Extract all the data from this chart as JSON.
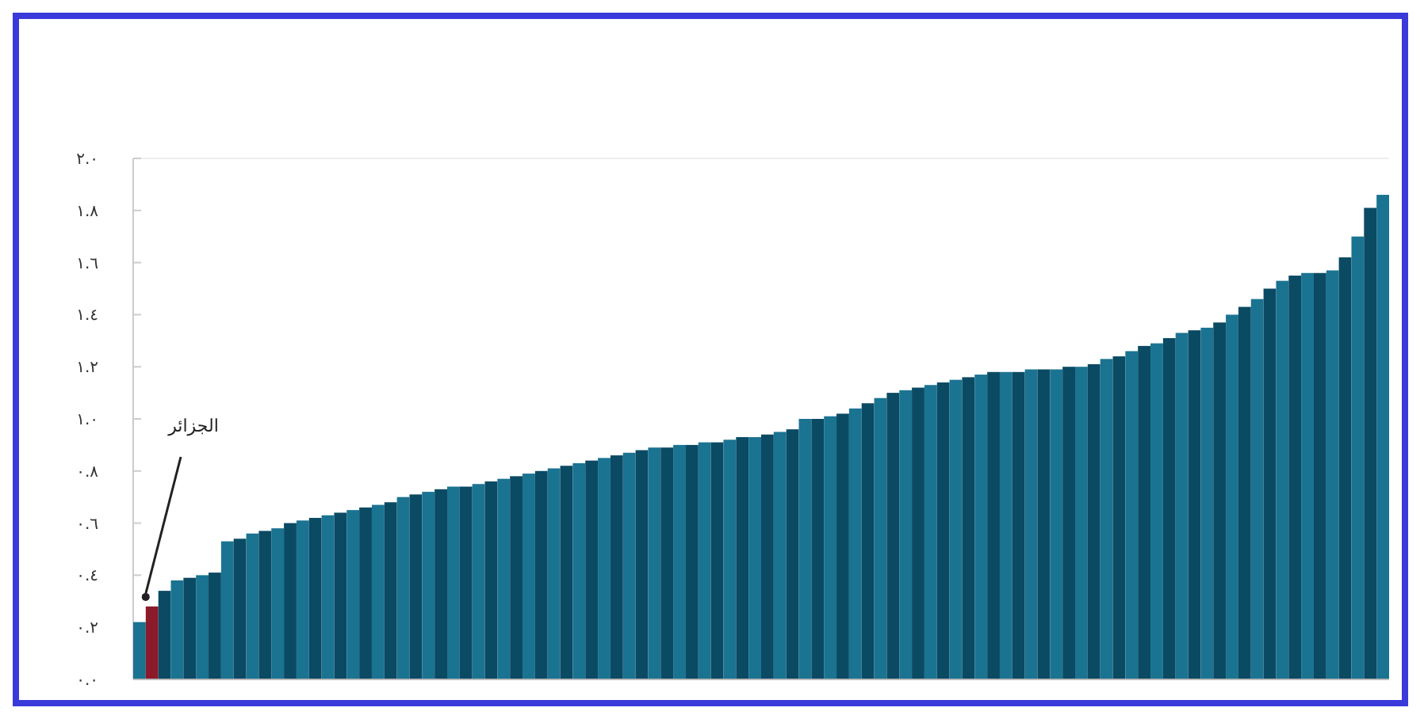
{
  "chart_data": {
    "type": "bar",
    "categories": [
      null,
      null,
      null,
      null,
      null,
      null,
      null,
      null,
      null,
      null,
      null,
      null,
      null,
      null,
      null,
      null,
      null,
      null,
      null,
      null,
      null,
      null,
      null,
      null,
      null,
      null,
      null,
      null,
      null,
      null,
      null,
      null,
      null,
      null,
      null,
      null,
      null,
      null,
      null,
      null,
      null,
      null,
      null,
      null,
      null,
      null,
      null,
      null,
      null,
      null,
      null,
      null,
      null,
      null,
      null,
      null,
      null,
      null,
      null,
      null,
      null,
      null,
      null,
      null,
      null,
      null,
      null,
      null,
      null,
      null,
      null,
      null,
      null,
      null,
      null,
      null,
      null,
      null,
      null,
      null,
      null,
      null,
      null,
      null,
      null,
      null,
      null,
      null,
      null,
      null,
      null,
      null,
      null,
      null,
      null,
      null,
      null,
      null,
      null,
      null
    ],
    "values": [
      0.22,
      0.28,
      0.34,
      0.38,
      0.39,
      0.4,
      0.41,
      0.53,
      0.54,
      0.56,
      0.57,
      0.58,
      0.6,
      0.61,
      0.62,
      0.63,
      0.64,
      0.65,
      0.66,
      0.67,
      0.68,
      0.7,
      0.71,
      0.72,
      0.73,
      0.74,
      0.74,
      0.75,
      0.76,
      0.77,
      0.78,
      0.79,
      0.8,
      0.81,
      0.82,
      0.83,
      0.84,
      0.85,
      0.86,
      0.87,
      0.88,
      0.89,
      0.89,
      0.9,
      0.9,
      0.91,
      0.91,
      0.92,
      0.93,
      0.93,
      0.94,
      0.95,
      0.96,
      1.0,
      1.0,
      1.01,
      1.02,
      1.04,
      1.06,
      1.08,
      1.1,
      1.11,
      1.12,
      1.13,
      1.14,
      1.15,
      1.16,
      1.17,
      1.18,
      1.18,
      1.18,
      1.19,
      1.19,
      1.19,
      1.2,
      1.2,
      1.21,
      1.23,
      1.24,
      1.26,
      1.28,
      1.29,
      1.31,
      1.33,
      1.34,
      1.35,
      1.37,
      1.4,
      1.43,
      1.46,
      1.5,
      1.53,
      1.55,
      1.56,
      1.56,
      1.57,
      1.62,
      1.7,
      1.81,
      1.86
    ],
    "colors": [
      "#1a7391",
      "#8b1a2a",
      "#0b4a63",
      "#1a7391",
      "#0b4a63",
      "#1a7391",
      "#0b4a63",
      "#1a7391",
      "#0b4a63",
      "#1a7391",
      "#0b4a63",
      "#1a7391",
      "#0b4a63",
      "#1a7391",
      "#0b4a63",
      "#1a7391",
      "#0b4a63",
      "#1a7391",
      "#0b4a63",
      "#1a7391",
      "#0b4a63",
      "#1a7391",
      "#0b4a63",
      "#1a7391",
      "#0b4a63",
      "#1a7391",
      "#0b4a63",
      "#1a7391",
      "#0b4a63",
      "#1a7391",
      "#0b4a63",
      "#1a7391",
      "#0b4a63",
      "#1a7391",
      "#0b4a63",
      "#1a7391",
      "#0b4a63",
      "#1a7391",
      "#0b4a63",
      "#1a7391",
      "#0b4a63",
      "#1a7391",
      "#0b4a63",
      "#1a7391",
      "#0b4a63",
      "#1a7391",
      "#0b4a63",
      "#1a7391",
      "#0b4a63",
      "#1a7391",
      "#0b4a63",
      "#1a7391",
      "#0b4a63",
      "#1a7391",
      "#0b4a63",
      "#1a7391",
      "#0b4a63",
      "#1a7391",
      "#0b4a63",
      "#1a7391",
      "#0b4a63",
      "#1a7391",
      "#0b4a63",
      "#1a7391",
      "#0b4a63",
      "#1a7391",
      "#0b4a63",
      "#1a7391",
      "#0b4a63",
      "#1a7391",
      "#0b4a63",
      "#1a7391",
      "#0b4a63",
      "#1a7391",
      "#0b4a63",
      "#1a7391",
      "#0b4a63",
      "#1a7391",
      "#0b4a63",
      "#1a7391",
      "#0b4a63",
      "#1a7391",
      "#0b4a63",
      "#1a7391",
      "#0b4a63",
      "#1a7391",
      "#0b4a63",
      "#1a7391",
      "#0b4a63",
      "#1a7391",
      "#0b4a63",
      "#1a7391",
      "#0b4a63",
      "#1a7391",
      "#0b4a63",
      "#1a7391",
      "#0b4a63",
      "#1a7391",
      "#0b4a63",
      "#1a7391"
    ],
    "ylim": [
      0,
      2
    ],
    "yticks": [
      {
        "value": 0,
        "label": "٠.٠"
      },
      {
        "value": 0.2,
        "label": "٠.٢"
      },
      {
        "value": 0.4,
        "label": "٠.٤"
      },
      {
        "value": 0.6,
        "label": "٠.٦"
      },
      {
        "value": 0.8,
        "label": "٠.٨"
      },
      {
        "value": 1,
        "label": "١.٠"
      },
      {
        "value": 1.2,
        "label": "١.٢"
      },
      {
        "value": 1.4,
        "label": "١.٤"
      },
      {
        "value": 1.6,
        "label": "١.٦"
      },
      {
        "value": 1.8,
        "label": "١.٨"
      },
      {
        "value": 2,
        "label": "٢.٠"
      }
    ],
    "annotations": [
      "الجزائر"
    ]
  }
}
